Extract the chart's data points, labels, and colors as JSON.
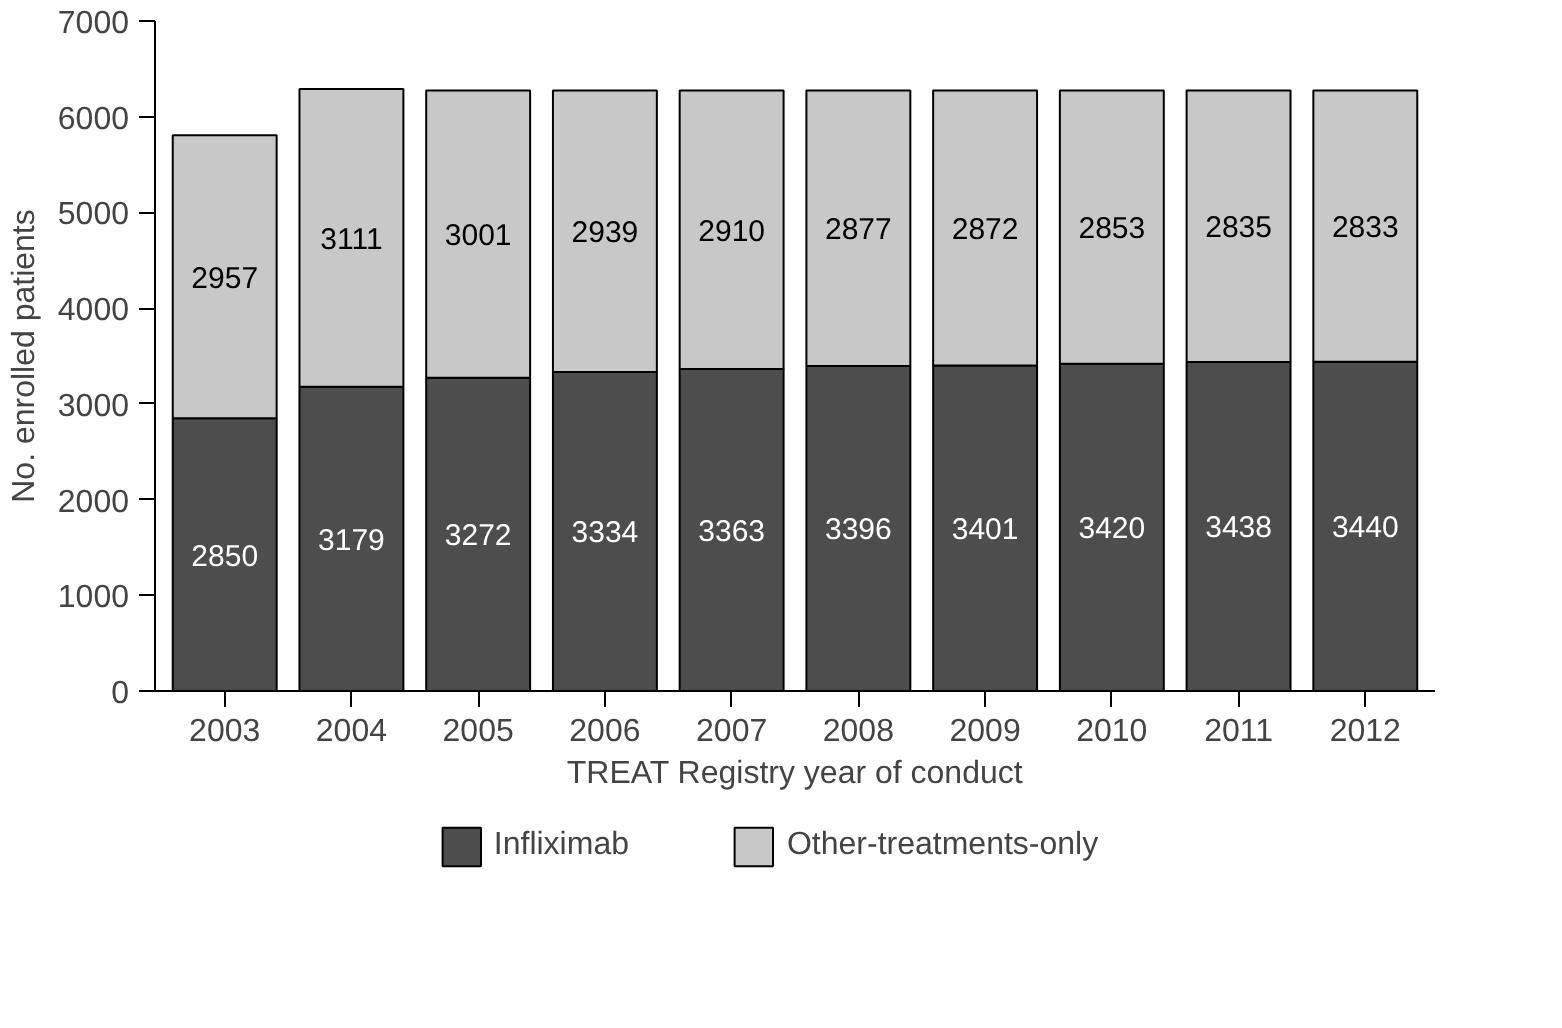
{
  "chart_data": {
    "type": "bar",
    "stacked": true,
    "xlabel": "TREAT Registry year of conduct",
    "ylabel": "No. enrolled patients",
    "categories": [
      "2003",
      "2004",
      "2005",
      "2006",
      "2007",
      "2008",
      "2009",
      "2010",
      "2011",
      "2012"
    ],
    "series": [
      {
        "name": "Infliximab",
        "color": "#4d4d4d",
        "values": [
          2850,
          3179,
          3272,
          3334,
          3363,
          3396,
          3401,
          3420,
          3438,
          3440
        ]
      },
      {
        "name": "Other-treatments-only",
        "color": "#c8c8c8",
        "values": [
          2957,
          3111,
          3001,
          2939,
          2910,
          2877,
          2872,
          2853,
          2835,
          2833
        ]
      }
    ],
    "ylim": [
      0,
      7000
    ],
    "yticks": [
      0,
      1000,
      2000,
      3000,
      4000,
      5000,
      6000,
      7000
    ],
    "data_labels": true,
    "grid": false,
    "legend": "bottom"
  }
}
